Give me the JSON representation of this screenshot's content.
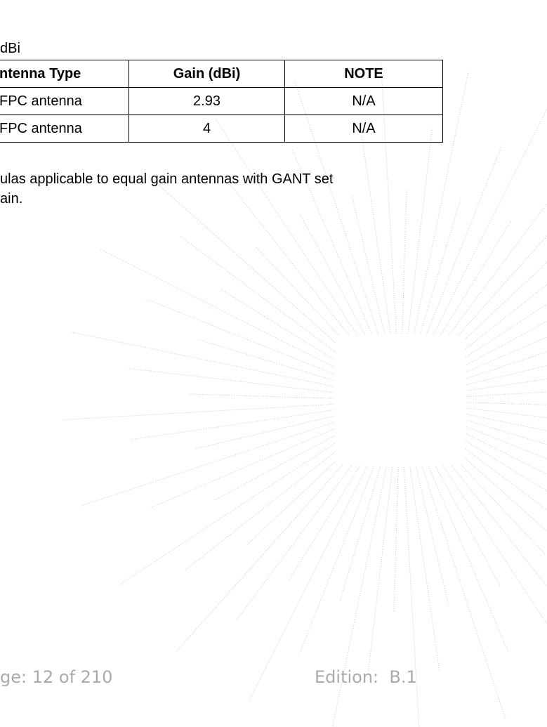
{
  "caption": "dBi",
  "table": {
    "header": [
      "ntenna Type",
      "Gain (dBi)",
      "NOTE"
    ],
    "rows": [
      [
        "FPC antenna",
        "2.93",
        "N/A"
      ],
      [
        "FPC antenna",
        "4",
        "N/A"
      ]
    ]
  },
  "paragraph": [
    "ulas applicable to equal gain antennas with GANT set",
    "ain."
  ],
  "footer": {
    "page": "ge: 12 of 210",
    "edition": "Edition:  B.1"
  }
}
